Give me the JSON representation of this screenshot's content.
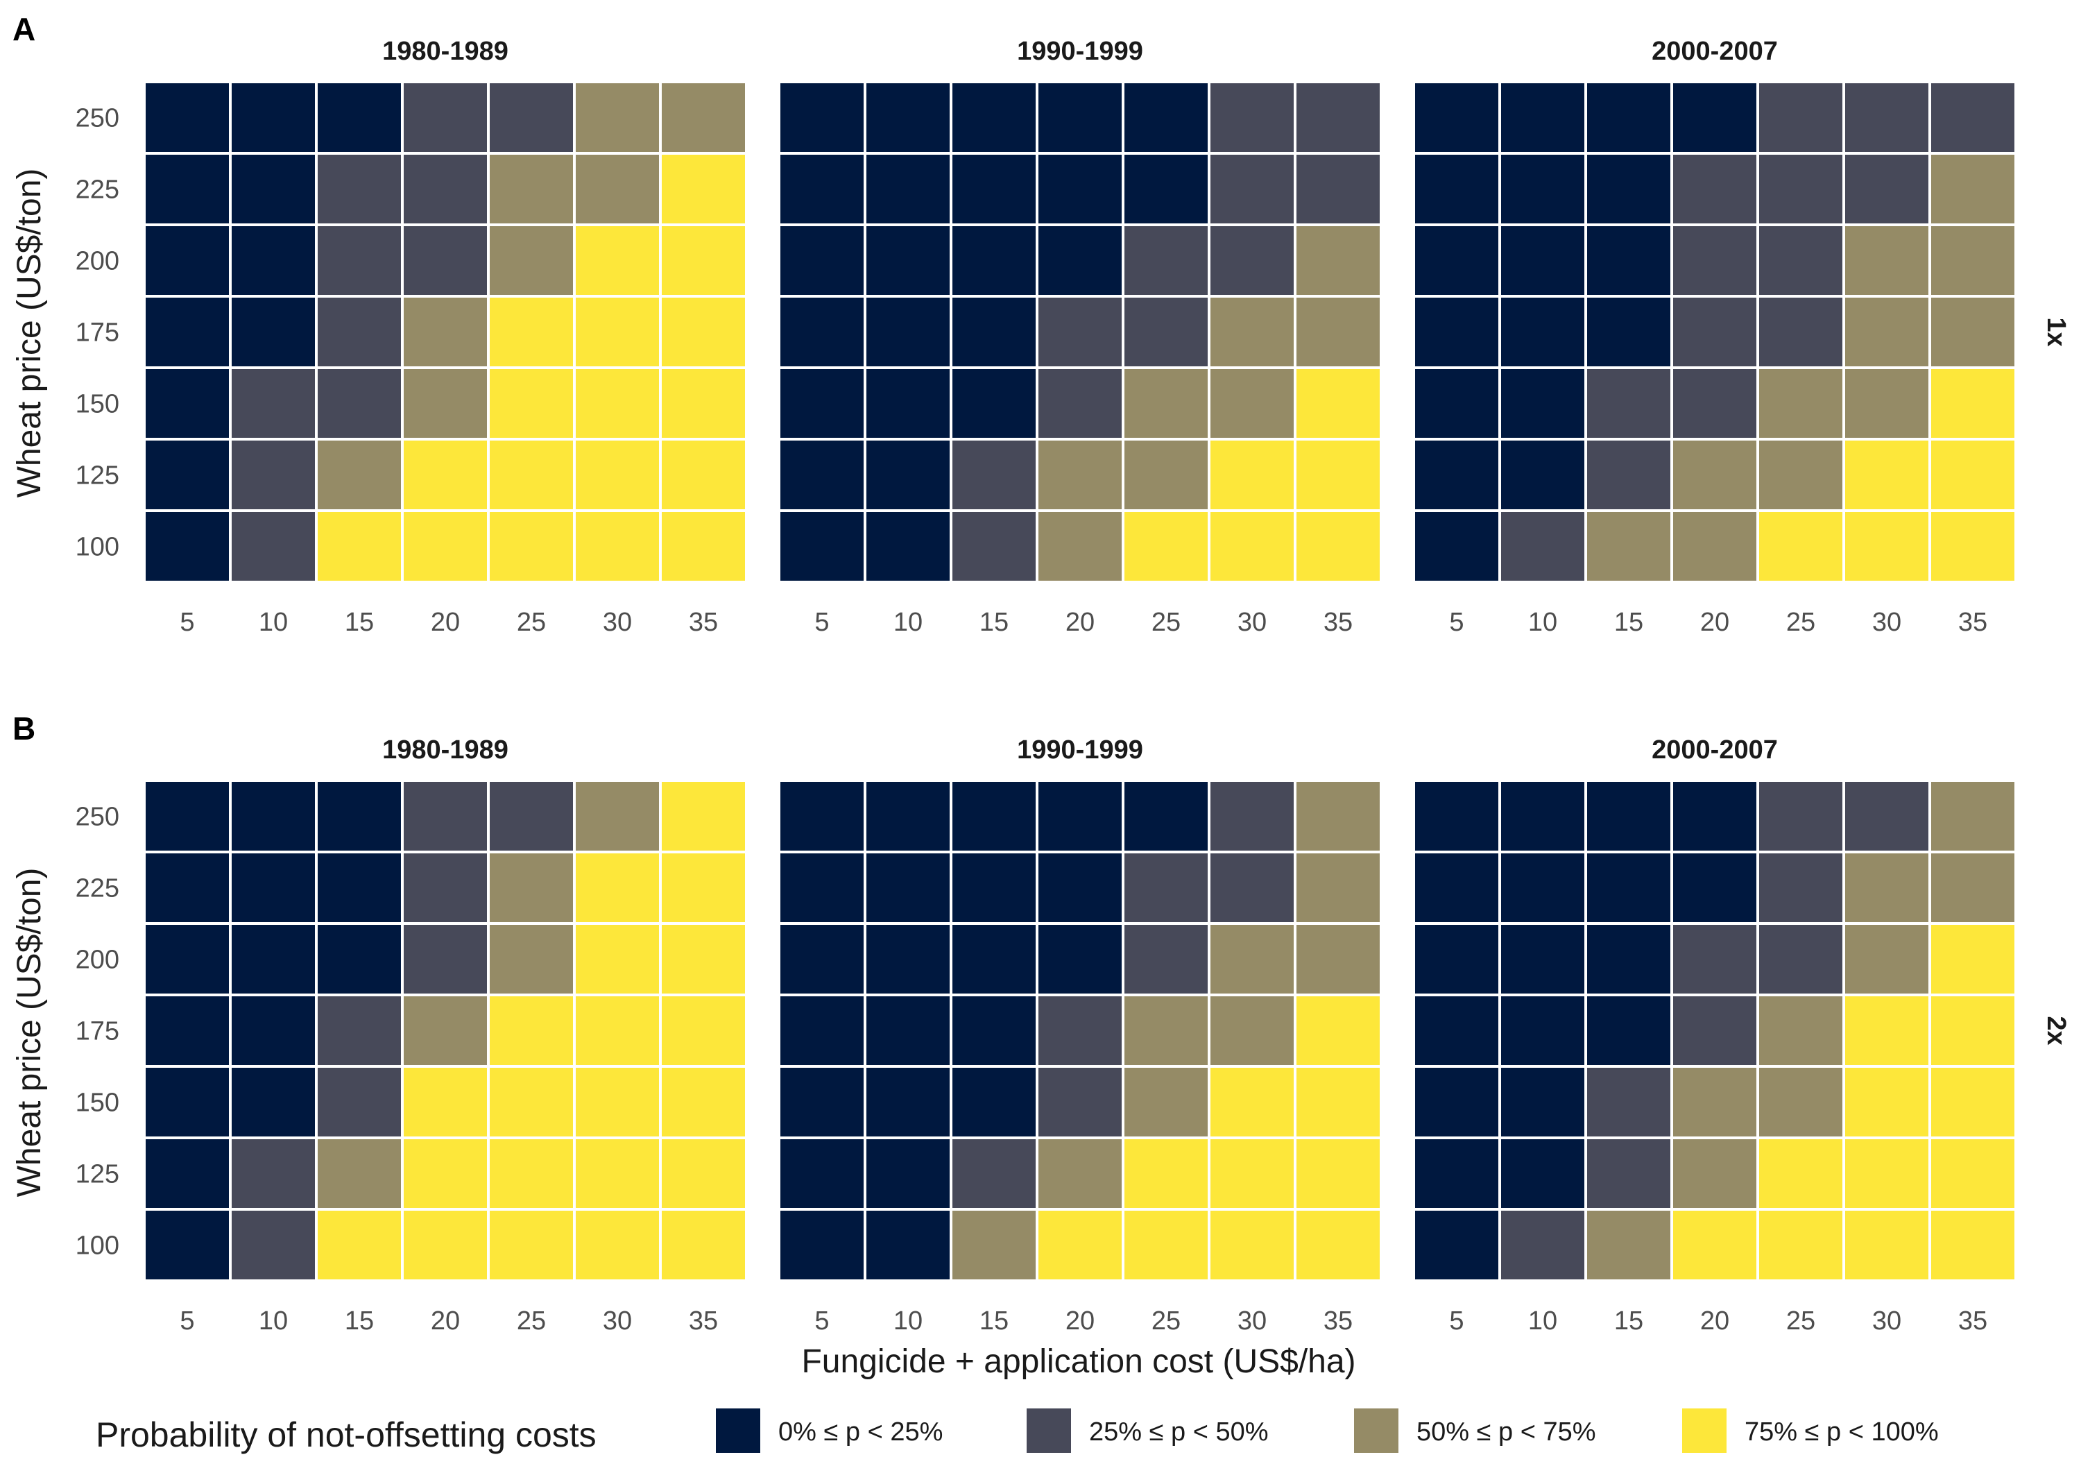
{
  "chart_data": {
    "type": "heatmap",
    "xlabel": "Fungicide + application cost (US$/ha)",
    "ylabel": "Wheat price (US$/ton)",
    "x": [
      5,
      10,
      15,
      20,
      25,
      30,
      35
    ],
    "y": [
      100,
      125,
      150,
      175,
      200,
      225,
      250
    ],
    "columns": [
      "1980-1989",
      "1990-1999",
      "2000-2007"
    ],
    "rows": [
      {
        "panel": "A",
        "strip": "1x"
      },
      {
        "panel": "B",
        "strip": "2x"
      }
    ],
    "legend": {
      "title": "Probability of not-offsetting costs",
      "placement": "bottom",
      "categories": [
        {
          "label": "0% ≤ p < 25%",
          "color": "#00183f"
        },
        {
          "label": "25% ≤ p < 50%",
          "color": "#474959"
        },
        {
          "label": "50% ≤ p < 75%",
          "color": "#958b66"
        },
        {
          "label": "75% ≤ p < 100%",
          "color": "#fde73a"
        }
      ]
    },
    "cell_encoding": "category index 0-3 (see legend); each matrix row is one wheat price from 250 (top) down to 100 (bottom), each column one cost from 5 to 35",
    "panels": [
      {
        "panel": "A",
        "strip": "1x",
        "period": "1980-1989",
        "cells": [
          [
            0,
            0,
            0,
            1,
            1,
            2,
            2
          ],
          [
            0,
            0,
            1,
            1,
            2,
            2,
            3
          ],
          [
            0,
            0,
            1,
            1,
            2,
            3,
            3
          ],
          [
            0,
            0,
            1,
            2,
            3,
            3,
            3
          ],
          [
            0,
            1,
            1,
            2,
            3,
            3,
            3
          ],
          [
            0,
            1,
            2,
            3,
            3,
            3,
            3
          ],
          [
            0,
            1,
            3,
            3,
            3,
            3,
            3
          ]
        ]
      },
      {
        "panel": "A",
        "strip": "1x",
        "period": "1990-1999",
        "cells": [
          [
            0,
            0,
            0,
            0,
            0,
            1,
            1
          ],
          [
            0,
            0,
            0,
            0,
            0,
            1,
            1
          ],
          [
            0,
            0,
            0,
            0,
            1,
            1,
            2
          ],
          [
            0,
            0,
            0,
            1,
            1,
            2,
            2
          ],
          [
            0,
            0,
            0,
            1,
            2,
            2,
            3
          ],
          [
            0,
            0,
            1,
            2,
            2,
            3,
            3
          ],
          [
            0,
            0,
            1,
            2,
            3,
            3,
            3
          ]
        ]
      },
      {
        "panel": "A",
        "strip": "1x",
        "period": "2000-2007",
        "cells": [
          [
            0,
            0,
            0,
            0,
            1,
            1,
            1
          ],
          [
            0,
            0,
            0,
            1,
            1,
            1,
            2
          ],
          [
            0,
            0,
            0,
            1,
            1,
            2,
            2
          ],
          [
            0,
            0,
            0,
            1,
            1,
            2,
            2
          ],
          [
            0,
            0,
            1,
            1,
            2,
            2,
            3
          ],
          [
            0,
            0,
            1,
            2,
            2,
            3,
            3
          ],
          [
            0,
            1,
            2,
            2,
            3,
            3,
            3
          ]
        ]
      },
      {
        "panel": "B",
        "strip": "2x",
        "period": "1980-1989",
        "cells": [
          [
            0,
            0,
            0,
            1,
            1,
            2,
            3
          ],
          [
            0,
            0,
            0,
            1,
            2,
            3,
            3
          ],
          [
            0,
            0,
            0,
            1,
            2,
            3,
            3
          ],
          [
            0,
            0,
            1,
            2,
            3,
            3,
            3
          ],
          [
            0,
            0,
            1,
            3,
            3,
            3,
            3
          ],
          [
            0,
            1,
            2,
            3,
            3,
            3,
            3
          ],
          [
            0,
            1,
            3,
            3,
            3,
            3,
            3
          ]
        ]
      },
      {
        "panel": "B",
        "strip": "2x",
        "period": "1990-1999",
        "cells": [
          [
            0,
            0,
            0,
            0,
            0,
            1,
            2
          ],
          [
            0,
            0,
            0,
            0,
            1,
            1,
            2
          ],
          [
            0,
            0,
            0,
            0,
            1,
            2,
            2
          ],
          [
            0,
            0,
            0,
            1,
            2,
            2,
            3
          ],
          [
            0,
            0,
            0,
            1,
            2,
            3,
            3
          ],
          [
            0,
            0,
            1,
            2,
            3,
            3,
            3
          ],
          [
            0,
            0,
            2,
            3,
            3,
            3,
            3
          ]
        ]
      },
      {
        "panel": "B",
        "strip": "2x",
        "period": "2000-2007",
        "cells": [
          [
            0,
            0,
            0,
            0,
            1,
            1,
            2
          ],
          [
            0,
            0,
            0,
            0,
            1,
            2,
            2
          ],
          [
            0,
            0,
            0,
            1,
            1,
            2,
            3
          ],
          [
            0,
            0,
            0,
            1,
            2,
            3,
            3
          ],
          [
            0,
            0,
            1,
            2,
            2,
            3,
            3
          ],
          [
            0,
            0,
            1,
            2,
            3,
            3,
            3
          ],
          [
            0,
            1,
            2,
            3,
            3,
            3,
            3
          ]
        ]
      }
    ]
  }
}
